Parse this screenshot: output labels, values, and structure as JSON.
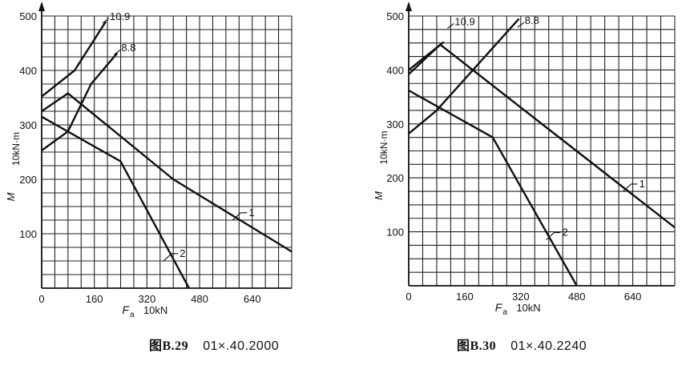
{
  "chart_data": [
    {
      "type": "line",
      "ylabel": "M",
      "ylabel_unit": "10kN·m",
      "xlabel": "F",
      "xlabel_sub": "a",
      "xlabel_unit": "10kN",
      "xticks": [
        0,
        160,
        320,
        480,
        640
      ],
      "yticks": [
        100,
        200,
        300,
        400,
        500
      ],
      "xlim": [
        0,
        760
      ],
      "ylim": [
        0,
        500
      ],
      "grid": true,
      "grid_step_x": 40,
      "grid_step_y": 25,
      "series": [
        {
          "name": "10.9",
          "points": [
            [
              0,
              352
            ],
            [
              100,
              400
            ],
            [
              195,
              490
            ]
          ],
          "label_at": [
            195,
            490
          ]
        },
        {
          "name": "8.8",
          "points": [
            [
              0,
              253
            ],
            [
              80,
              288
            ],
            [
              150,
              375
            ],
            [
              230,
              432
            ]
          ],
          "label_at": [
            230,
            432
          ]
        },
        {
          "name": "1",
          "points": [
            [
              0,
              325
            ],
            [
              80,
              358
            ],
            [
              400,
              200
            ],
            [
              760,
              67
            ]
          ],
          "label_at": [
            610,
            140
          ]
        },
        {
          "name": "2",
          "points": [
            [
              0,
              315
            ],
            [
              240,
              233
            ],
            [
              448,
              0
            ]
          ],
          "label_at": [
            400,
            65
          ]
        }
      ],
      "caption_label": "图B.29",
      "caption_code": "01×.40.2000"
    },
    {
      "type": "line",
      "ylabel": "M",
      "ylabel_unit": "10kN·m",
      "xlabel": "F",
      "xlabel_sub": "a",
      "xlabel_unit": "10kN",
      "xticks": [
        0,
        160,
        320,
        480,
        640
      ],
      "yticks": [
        100,
        200,
        300,
        400,
        500
      ],
      "xlim": [
        0,
        760
      ],
      "ylim": [
        0,
        500
      ],
      "grid": true,
      "grid_step_x": 40,
      "grid_step_y": 25,
      "series": [
        {
          "name": "10.9",
          "points": [
            [
              0,
              400
            ],
            [
              100,
              452
            ]
          ],
          "label_at": [
            120,
            480
          ]
        },
        {
          "name": "8.8",
          "points": [
            [
              0,
              282
            ],
            [
              80,
              325
            ],
            [
              315,
              495
            ]
          ],
          "label_at": [
            320,
            482
          ]
        },
        {
          "name": "1",
          "points": [
            [
              0,
              392
            ],
            [
              90,
              447
            ],
            [
              400,
              290
            ],
            [
              760,
              108
            ]
          ],
          "label_at": [
            640,
            190
          ]
        },
        {
          "name": "2",
          "points": [
            [
              0,
              362
            ],
            [
              240,
              275
            ],
            [
              480,
              0
            ]
          ],
          "label_at": [
            420,
            100
          ]
        }
      ],
      "caption_label": "图B.30",
      "caption_code": "01×.40.2240"
    }
  ]
}
